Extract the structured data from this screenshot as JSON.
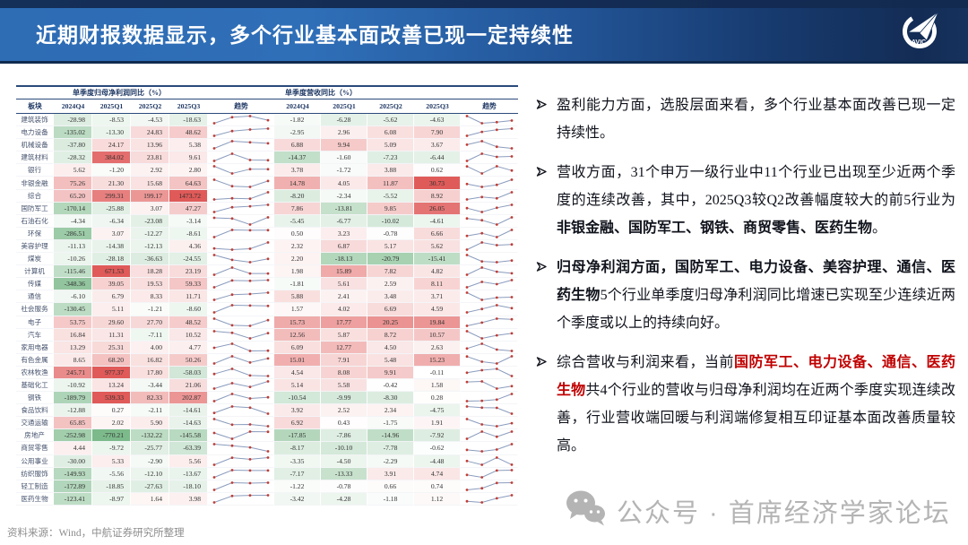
{
  "header": {
    "title": "近期财报数据显示，多个行业基本面改善已现一定持续性",
    "logo_text": "AVIC"
  },
  "palette": {
    "header_navy": "#16325d",
    "accent_red": "#c00000",
    "heat_positive": "#df5a58",
    "heat_negative": "#7cba8b",
    "spark_line": "#8a9cbd",
    "spark_marker": "#c23b33"
  },
  "bullets": [
    {
      "runs": [
        {
          "text": "盈利能力方面，选股层面来看，多个行业基本面改善已现一定持续性。"
        }
      ]
    },
    {
      "runs": [
        {
          "text": "营收方面，31个申万一级行业中11个行业已出现至少近两个季度的连续改善，其中，2025Q3较Q2改善幅度较大的前5行业为"
        },
        {
          "text": "非银金融、国防军工、钢铁、商贸零售、医药生物",
          "bold": true
        },
        {
          "text": "。"
        }
      ]
    },
    {
      "runs": [
        {
          "text": "归母净利润方面，国防军工、电力设备、美容护理、通信、医药生物",
          "bold": true
        },
        {
          "text": "5个行业单季度归母净利润同比增速已实现至少连续近两个季度或以上的持续向好。"
        }
      ]
    },
    {
      "runs": [
        {
          "text": "综合营收与利润来看，当前"
        },
        {
          "text": "国防军工、电力设备、通信、医药生物",
          "bold": true,
          "color": "#c00000"
        },
        {
          "text": "共4个行业的营收与归母净利润均在近两个季度实现连续改善，行业营收端回暖与利润端修复相互印证基本面改善质量较高。"
        }
      ]
    }
  ],
  "watermark": {
    "text": "公众号 · 首席经济学家论坛",
    "icon": "wechat-icon"
  },
  "source": "资料来源：Wind，中航证券研究所整理",
  "chart_data": {
    "type": "heatmap",
    "groups": [
      "单季度归母净利润同比（%）",
      "单季度营收同比（%）"
    ],
    "columns": [
      "板块",
      "2024Q4",
      "2025Q1",
      "2025Q2",
      "2025Q3",
      "趋势",
      "2024Q4",
      "2025Q1",
      "2025Q2",
      "2025Q3",
      "趋势"
    ],
    "quarters": [
      "2024Q4",
      "2025Q1",
      "2025Q2",
      "2025Q3"
    ],
    "rows": [
      {
        "sector": "建筑装饰",
        "profit": [
          -28.98,
          -8.53,
          -4.53,
          -18.63
        ],
        "revenue": [
          -1.82,
          -6.28,
          -5.62,
          -4.63
        ]
      },
      {
        "sector": "电力设备",
        "profit": [
          -135.02,
          -13.3,
          24.83,
          48.62
        ],
        "revenue": [
          -2.95,
          2.96,
          6.08,
          7.9
        ]
      },
      {
        "sector": "机械设备",
        "profit": [
          -37.8,
          24.17,
          13.96,
          5.38
        ],
        "revenue": [
          6.88,
          9.94,
          5.09,
          3.67
        ]
      },
      {
        "sector": "建筑材料",
        "profit": [
          -28.32,
          384.02,
          23.81,
          9.61
        ],
        "revenue": [
          -14.37,
          -1.6,
          -7.23,
          -6.44
        ]
      },
      {
        "sector": "银行",
        "profit": [
          5.62,
          -1.2,
          2.92,
          2.8
        ],
        "revenue": [
          3.78,
          -1.72,
          3.88,
          0.62
        ]
      },
      {
        "sector": "非银金融",
        "profit": [
          75.26,
          21.3,
          15.68,
          64.63
        ],
        "revenue": [
          14.78,
          4.05,
          11.87,
          30.73
        ]
      },
      {
        "sector": "综合",
        "profit": [
          65.2,
          299.31,
          199.17,
          1473.72
        ],
        "revenue": [
          -8.2,
          -2.34,
          -5.52,
          8.92
        ]
      },
      {
        "sector": "国防军工",
        "profit": [
          -170.14,
          -25.88,
          3.07,
          47.27
        ],
        "revenue": [
          7.86,
          -13.81,
          9.85,
          26.05
        ]
      },
      {
        "sector": "石油石化",
        "profit": [
          -4.34,
          -6.34,
          -23.08,
          -3.14
        ],
        "revenue": [
          -5.45,
          -6.77,
          -10.02,
          -4.61
        ]
      },
      {
        "sector": "环保",
        "profit": [
          -286.51,
          3.07,
          -12.27,
          -8.61
        ],
        "revenue": [
          0.5,
          3.23,
          -0.78,
          6.66
        ]
      },
      {
        "sector": "美容护理",
        "profit": [
          -11.13,
          -14.38,
          -12.13,
          4.36
        ],
        "revenue": [
          2.32,
          6.87,
          5.17,
          5.62
        ]
      },
      {
        "sector": "煤炭",
        "profit": [
          -10.26,
          -28.18,
          -36.63,
          -24.55
        ],
        "revenue": [
          2.2,
          -18.13,
          -20.79,
          -15.41
        ]
      },
      {
        "sector": "计算机",
        "profit": [
          -115.46,
          671.53,
          18.28,
          23.19
        ],
        "revenue": [
          1.98,
          15.89,
          7.82,
          4.82
        ]
      },
      {
        "sector": "传媒",
        "profit": [
          -348.36,
          39.05,
          19.53,
          59.33
        ],
        "revenue": [
          -1.81,
          5.61,
          2.59,
          8.11
        ]
      },
      {
        "sector": "通信",
        "profit": [
          -6.1,
          6.79,
          8.33,
          11.71
        ],
        "revenue": [
          5.88,
          2.41,
          3.48,
          3.71
        ]
      },
      {
        "sector": "社会服务",
        "profit": [
          -130.45,
          5.11,
          -1.21,
          -8.6
        ],
        "revenue": [
          1.57,
          4.02,
          6.69,
          4.59
        ]
      },
      {
        "sector": "电子",
        "profit": [
          53.75,
          29.6,
          27.7,
          48.52
        ],
        "revenue": [
          15.73,
          17.77,
          20.25,
          19.84
        ]
      },
      {
        "sector": "汽车",
        "profit": [
          16.84,
          11.31,
          -7.11,
          10.52
        ],
        "revenue": [
          12.56,
          5.87,
          8.72,
          10.57
        ]
      },
      {
        "sector": "家用电器",
        "profit": [
          13.29,
          25.31,
          4.0,
          4.77
        ],
        "revenue": [
          6.09,
          12.77,
          4.5,
          2.63
        ]
      },
      {
        "sector": "有色金属",
        "profit": [
          8.65,
          68.2,
          16.82,
          50.26
        ],
        "revenue": [
          15.01,
          7.91,
          5.48,
          15.23
        ]
      },
      {
        "sector": "农林牧渔",
        "profit": [
          245.71,
          977.37,
          17.8,
          -58.03
        ],
        "revenue": [
          4.54,
          8.08,
          9.91,
          -0.11
        ]
      },
      {
        "sector": "基础化工",
        "profit": [
          -10.92,
          13.24,
          -3.44,
          21.06
        ],
        "revenue": [
          5.14,
          5.58,
          -0.42,
          1.58
        ]
      },
      {
        "sector": "钢铁",
        "profit": [
          -189.79,
          539.33,
          82.33,
          202.87
        ],
        "revenue": [
          -10.54,
          -9.99,
          -8.3,
          0.28
        ]
      },
      {
        "sector": "食品饮料",
        "profit": [
          -12.88,
          0.27,
          -2.11,
          -14.61
        ],
        "revenue": [
          3.92,
          2.52,
          2.34,
          -4.75
        ]
      },
      {
        "sector": "交通运输",
        "profit": [
          65.85,
          2.02,
          5.9,
          -14.63
        ],
        "revenue": [
          6.92,
          0.43,
          -1.75,
          1.91
        ]
      },
      {
        "sector": "房地产",
        "profit": [
          -252.98,
          -770.21,
          -132.22,
          -145.58
        ],
        "revenue": [
          -17.85,
          -7.86,
          -14.96,
          -7.92
        ]
      },
      {
        "sector": "商贸零售",
        "profit": [
          4.44,
          -9.72,
          -25.77,
          -63.39
        ],
        "revenue": [
          -8.17,
          -10.1,
          -7.78,
          -0.62
        ]
      },
      {
        "sector": "公用事业",
        "profit": [
          -30.0,
          5.33,
          -2.9,
          5.56
        ],
        "revenue": [
          -3.35,
          -4.5,
          -2.29,
          -4.48
        ]
      },
      {
        "sector": "纺织服饰",
        "profit": [
          -149.93,
          -5.56,
          -12.1,
          -13.67
        ],
        "revenue": [
          -7.17,
          -13.33,
          3.91,
          4.74
        ]
      },
      {
        "sector": "轻工制造",
        "profit": [
          -172.89,
          -18.85,
          -27.63,
          -18.1
        ],
        "revenue": [
          -1.22,
          -0.78,
          0.66,
          0.74
        ]
      },
      {
        "sector": "医药生物",
        "profit": [
          -123.41,
          -8.97,
          1.64,
          3.98
        ],
        "revenue": [
          -3.42,
          -4.28,
          -1.18,
          1.12
        ]
      }
    ]
  }
}
